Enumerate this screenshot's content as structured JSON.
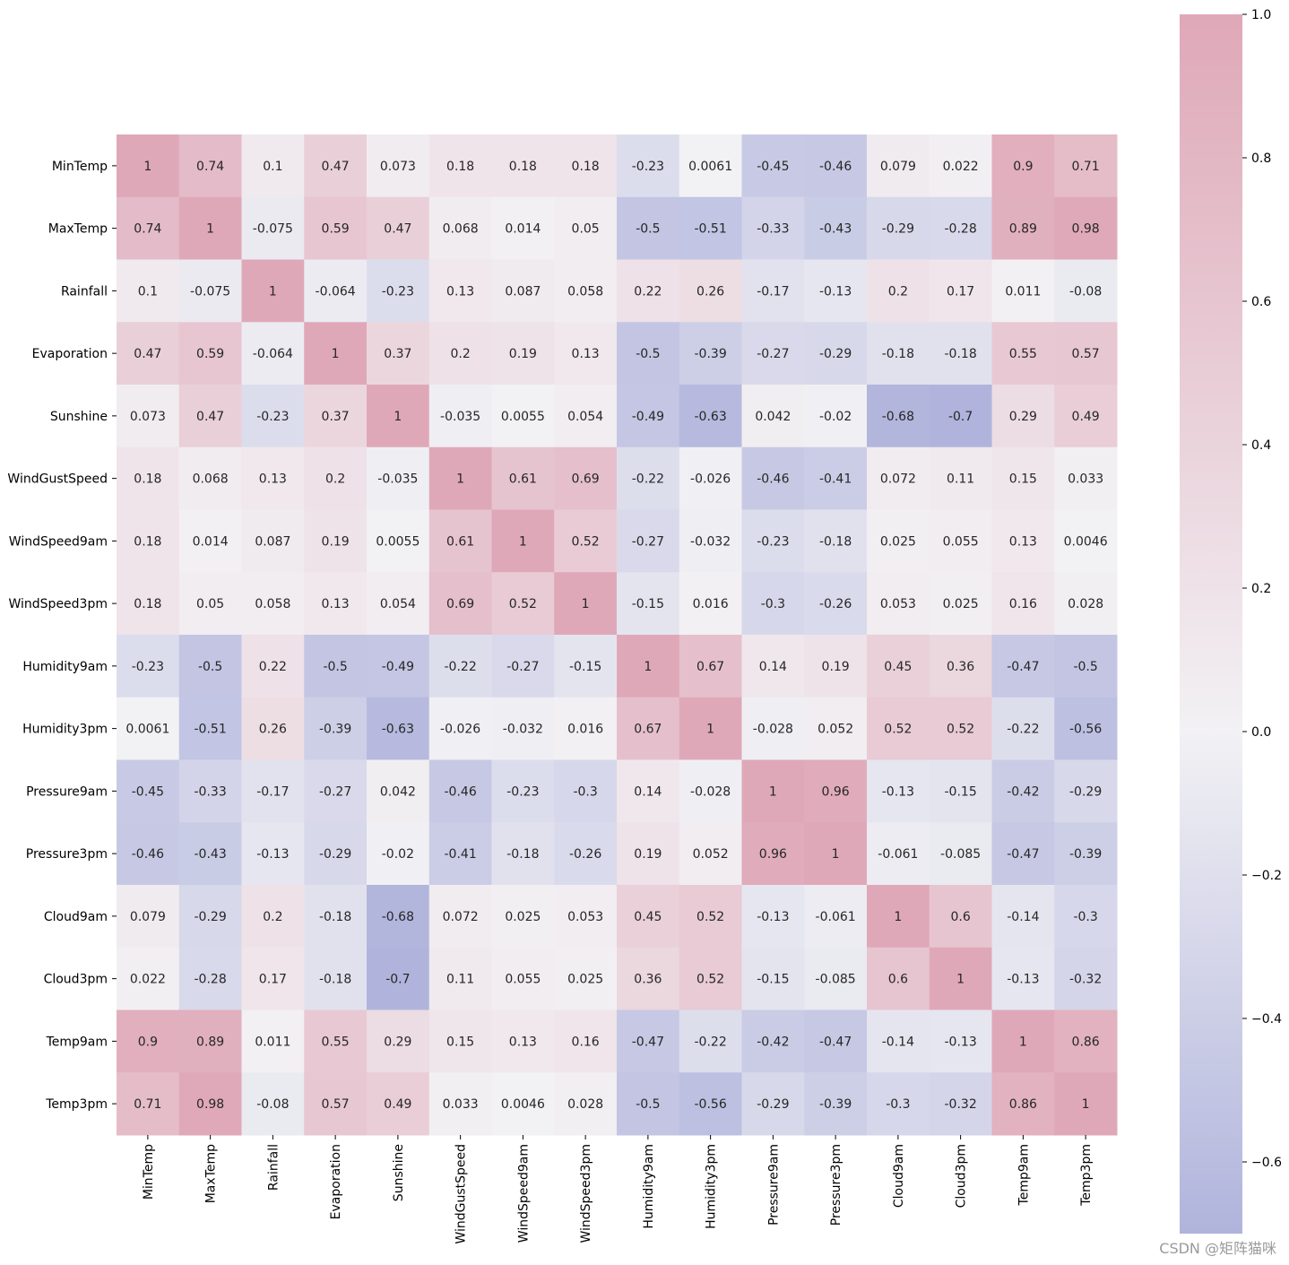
{
  "chart_data": {
    "type": "heatmap",
    "title": "",
    "labels": [
      "MinTemp",
      "MaxTemp",
      "Rainfall",
      "Evaporation",
      "Sunshine",
      "WindGustSpeed",
      "WindSpeed9am",
      "WindSpeed3pm",
      "Humidity9am",
      "Humidity3pm",
      "Pressure9am",
      "Pressure3pm",
      "Cloud9am",
      "Cloud3pm",
      "Temp9am",
      "Temp3pm"
    ],
    "matrix": [
      [
        "1",
        "0.74",
        "0.1",
        "0.47",
        "0.073",
        "0.18",
        "0.18",
        "0.18",
        "-0.23",
        "0.0061",
        "-0.45",
        "-0.46",
        "0.079",
        "0.022",
        "0.9",
        "0.71"
      ],
      [
        "0.74",
        "1",
        "-0.075",
        "0.59",
        "0.47",
        "0.068",
        "0.014",
        "0.05",
        "-0.5",
        "-0.51",
        "-0.33",
        "-0.43",
        "-0.29",
        "-0.28",
        "0.89",
        "0.98"
      ],
      [
        "0.1",
        "-0.075",
        "1",
        "-0.064",
        "-0.23",
        "0.13",
        "0.087",
        "0.058",
        "0.22",
        "0.26",
        "-0.17",
        "-0.13",
        "0.2",
        "0.17",
        "0.011",
        "-0.08"
      ],
      [
        "0.47",
        "0.59",
        "-0.064",
        "1",
        "0.37",
        "0.2",
        "0.19",
        "0.13",
        "-0.5",
        "-0.39",
        "-0.27",
        "-0.29",
        "-0.18",
        "-0.18",
        "0.55",
        "0.57"
      ],
      [
        "0.073",
        "0.47",
        "-0.23",
        "0.37",
        "1",
        "-0.035",
        "0.0055",
        "0.054",
        "-0.49",
        "-0.63",
        "0.042",
        "-0.02",
        "-0.68",
        "-0.7",
        "0.29",
        "0.49"
      ],
      [
        "0.18",
        "0.068",
        "0.13",
        "0.2",
        "-0.035",
        "1",
        "0.61",
        "0.69",
        "-0.22",
        "-0.026",
        "-0.46",
        "-0.41",
        "0.072",
        "0.11",
        "0.15",
        "0.033"
      ],
      [
        "0.18",
        "0.014",
        "0.087",
        "0.19",
        "0.0055",
        "0.61",
        "1",
        "0.52",
        "-0.27",
        "-0.032",
        "-0.23",
        "-0.18",
        "0.025",
        "0.055",
        "0.13",
        "0.0046"
      ],
      [
        "0.18",
        "0.05",
        "0.058",
        "0.13",
        "0.054",
        "0.69",
        "0.52",
        "1",
        "-0.15",
        "0.016",
        "-0.3",
        "-0.26",
        "0.053",
        "0.025",
        "0.16",
        "0.028"
      ],
      [
        "-0.23",
        "-0.5",
        "0.22",
        "-0.5",
        "-0.49",
        "-0.22",
        "-0.27",
        "-0.15",
        "1",
        "0.67",
        "0.14",
        "0.19",
        "0.45",
        "0.36",
        "-0.47",
        "-0.5"
      ],
      [
        "0.0061",
        "-0.51",
        "0.26",
        "-0.39",
        "-0.63",
        "-0.026",
        "-0.032",
        "0.016",
        "0.67",
        "1",
        "-0.028",
        "0.052",
        "0.52",
        "0.52",
        "-0.22",
        "-0.56"
      ],
      [
        "-0.45",
        "-0.33",
        "-0.17",
        "-0.27",
        "0.042",
        "-0.46",
        "-0.23",
        "-0.3",
        "0.14",
        "-0.028",
        "1",
        "0.96",
        "-0.13",
        "-0.15",
        "-0.42",
        "-0.29"
      ],
      [
        "-0.46",
        "-0.43",
        "-0.13",
        "-0.29",
        "-0.02",
        "-0.41",
        "-0.18",
        "-0.26",
        "0.19",
        "0.052",
        "0.96",
        "1",
        "-0.061",
        "-0.085",
        "-0.47",
        "-0.39"
      ],
      [
        "0.079",
        "-0.29",
        "0.2",
        "-0.18",
        "-0.68",
        "0.072",
        "0.025",
        "0.053",
        "0.45",
        "0.52",
        "-0.13",
        "-0.061",
        "1",
        "0.6",
        "-0.14",
        "-0.3"
      ],
      [
        "0.022",
        "-0.28",
        "0.17",
        "-0.18",
        "-0.7",
        "0.11",
        "0.055",
        "0.025",
        "0.36",
        "0.52",
        "-0.15",
        "-0.085",
        "0.6",
        "1",
        "-0.13",
        "-0.32"
      ],
      [
        "0.9",
        "0.89",
        "0.011",
        "0.55",
        "0.29",
        "0.15",
        "0.13",
        "0.16",
        "-0.47",
        "-0.22",
        "-0.42",
        "-0.47",
        "-0.14",
        "-0.13",
        "1",
        "0.86"
      ],
      [
        "0.71",
        "0.98",
        "-0.08",
        "0.57",
        "0.49",
        "0.033",
        "0.0046",
        "0.028",
        "-0.5",
        "-0.56",
        "-0.29",
        "-0.39",
        "-0.3",
        "-0.32",
        "0.86",
        "1"
      ]
    ],
    "colorbar": {
      "vmin": -0.7,
      "vmax": 1.0,
      "ticks": [
        "1.0",
        "0.8",
        "0.6",
        "0.4",
        "0.2",
        "0.0",
        "−0.2",
        "−0.4",
        "−0.6"
      ],
      "tick_values": [
        1.0,
        0.8,
        0.6,
        0.4,
        0.2,
        0.0,
        -0.2,
        -0.4,
        -0.6
      ],
      "color_low": "#b0b4dc",
      "color_mid": "#f2f1f4",
      "color_high": "#dfa8b8"
    }
  },
  "watermark": "CSDN @矩阵猫咪"
}
